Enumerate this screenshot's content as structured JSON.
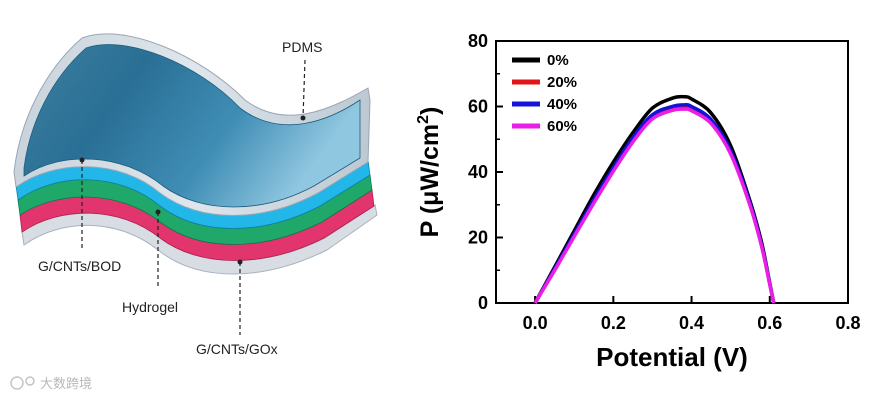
{
  "diagram": {
    "layers": {
      "top": "PDMS",
      "anode": "G/CNTs/BOD",
      "middle": "Hydrogel",
      "cathode": "G/CNTs/GOx"
    },
    "colors": {
      "pdms": "#2e7ea6",
      "cyan": "#22b7e8",
      "green": "#1fa86a",
      "pink": "#e2356e"
    }
  },
  "watermark": "大数跨境",
  "chart_data": {
    "type": "line",
    "title": "",
    "xlabel": "Potential (V)",
    "ylabel": "P (μW/cm",
    "ylabel_sup": "2",
    "ylabel_close": ")",
    "xlim": [
      -0.1,
      0.8
    ],
    "ylim": [
      0,
      80
    ],
    "xticks": [
      "0.0",
      "0.2",
      "0.4",
      "0.6",
      "0.8"
    ],
    "yticks": [
      "0",
      "20",
      "40",
      "60",
      "80"
    ],
    "legend_position": "top-left",
    "series": [
      {
        "name": "0%",
        "color": "#000000",
        "x": [
          0.0,
          0.05,
          0.1,
          0.15,
          0.2,
          0.25,
          0.3,
          0.35,
          0.38,
          0.4,
          0.45,
          0.5,
          0.55,
          0.58,
          0.6,
          0.61
        ],
        "y": [
          0,
          11,
          22,
          33,
          43,
          52,
          59.5,
          62.5,
          63,
          62.3,
          58,
          48,
          31,
          18,
          6,
          0
        ]
      },
      {
        "name": "20%",
        "color": "#e0161b",
        "x": [
          0.0,
          0.05,
          0.1,
          0.15,
          0.2,
          0.25,
          0.3,
          0.35,
          0.38,
          0.4,
          0.45,
          0.5,
          0.55,
          0.58,
          0.6,
          0.61
        ],
        "y": [
          0,
          10.3,
          20.8,
          31.2,
          41,
          50,
          57,
          59.5,
          60,
          59.5,
          55.5,
          46,
          30,
          17,
          5.8,
          0
        ]
      },
      {
        "name": "40%",
        "color": "#1414d8",
        "x": [
          0.0,
          0.05,
          0.1,
          0.15,
          0.2,
          0.25,
          0.3,
          0.35,
          0.38,
          0.4,
          0.45,
          0.5,
          0.55,
          0.58,
          0.6,
          0.61
        ],
        "y": [
          0,
          10.5,
          21,
          31.5,
          41.3,
          50.5,
          57.5,
          60,
          60.5,
          60,
          56,
          46.5,
          30.3,
          17.3,
          5.9,
          0
        ]
      },
      {
        "name": "60%",
        "color": "#ea1ee6",
        "x": [
          0.0,
          0.05,
          0.1,
          0.15,
          0.2,
          0.25,
          0.3,
          0.35,
          0.38,
          0.4,
          0.45,
          0.5,
          0.55,
          0.58,
          0.6,
          0.61
        ],
        "y": [
          0,
          10,
          20.3,
          30.5,
          40.2,
          49.2,
          56.2,
          58.8,
          59.2,
          58.7,
          54.8,
          45.5,
          29.6,
          16.8,
          5.6,
          0
        ]
      }
    ]
  }
}
